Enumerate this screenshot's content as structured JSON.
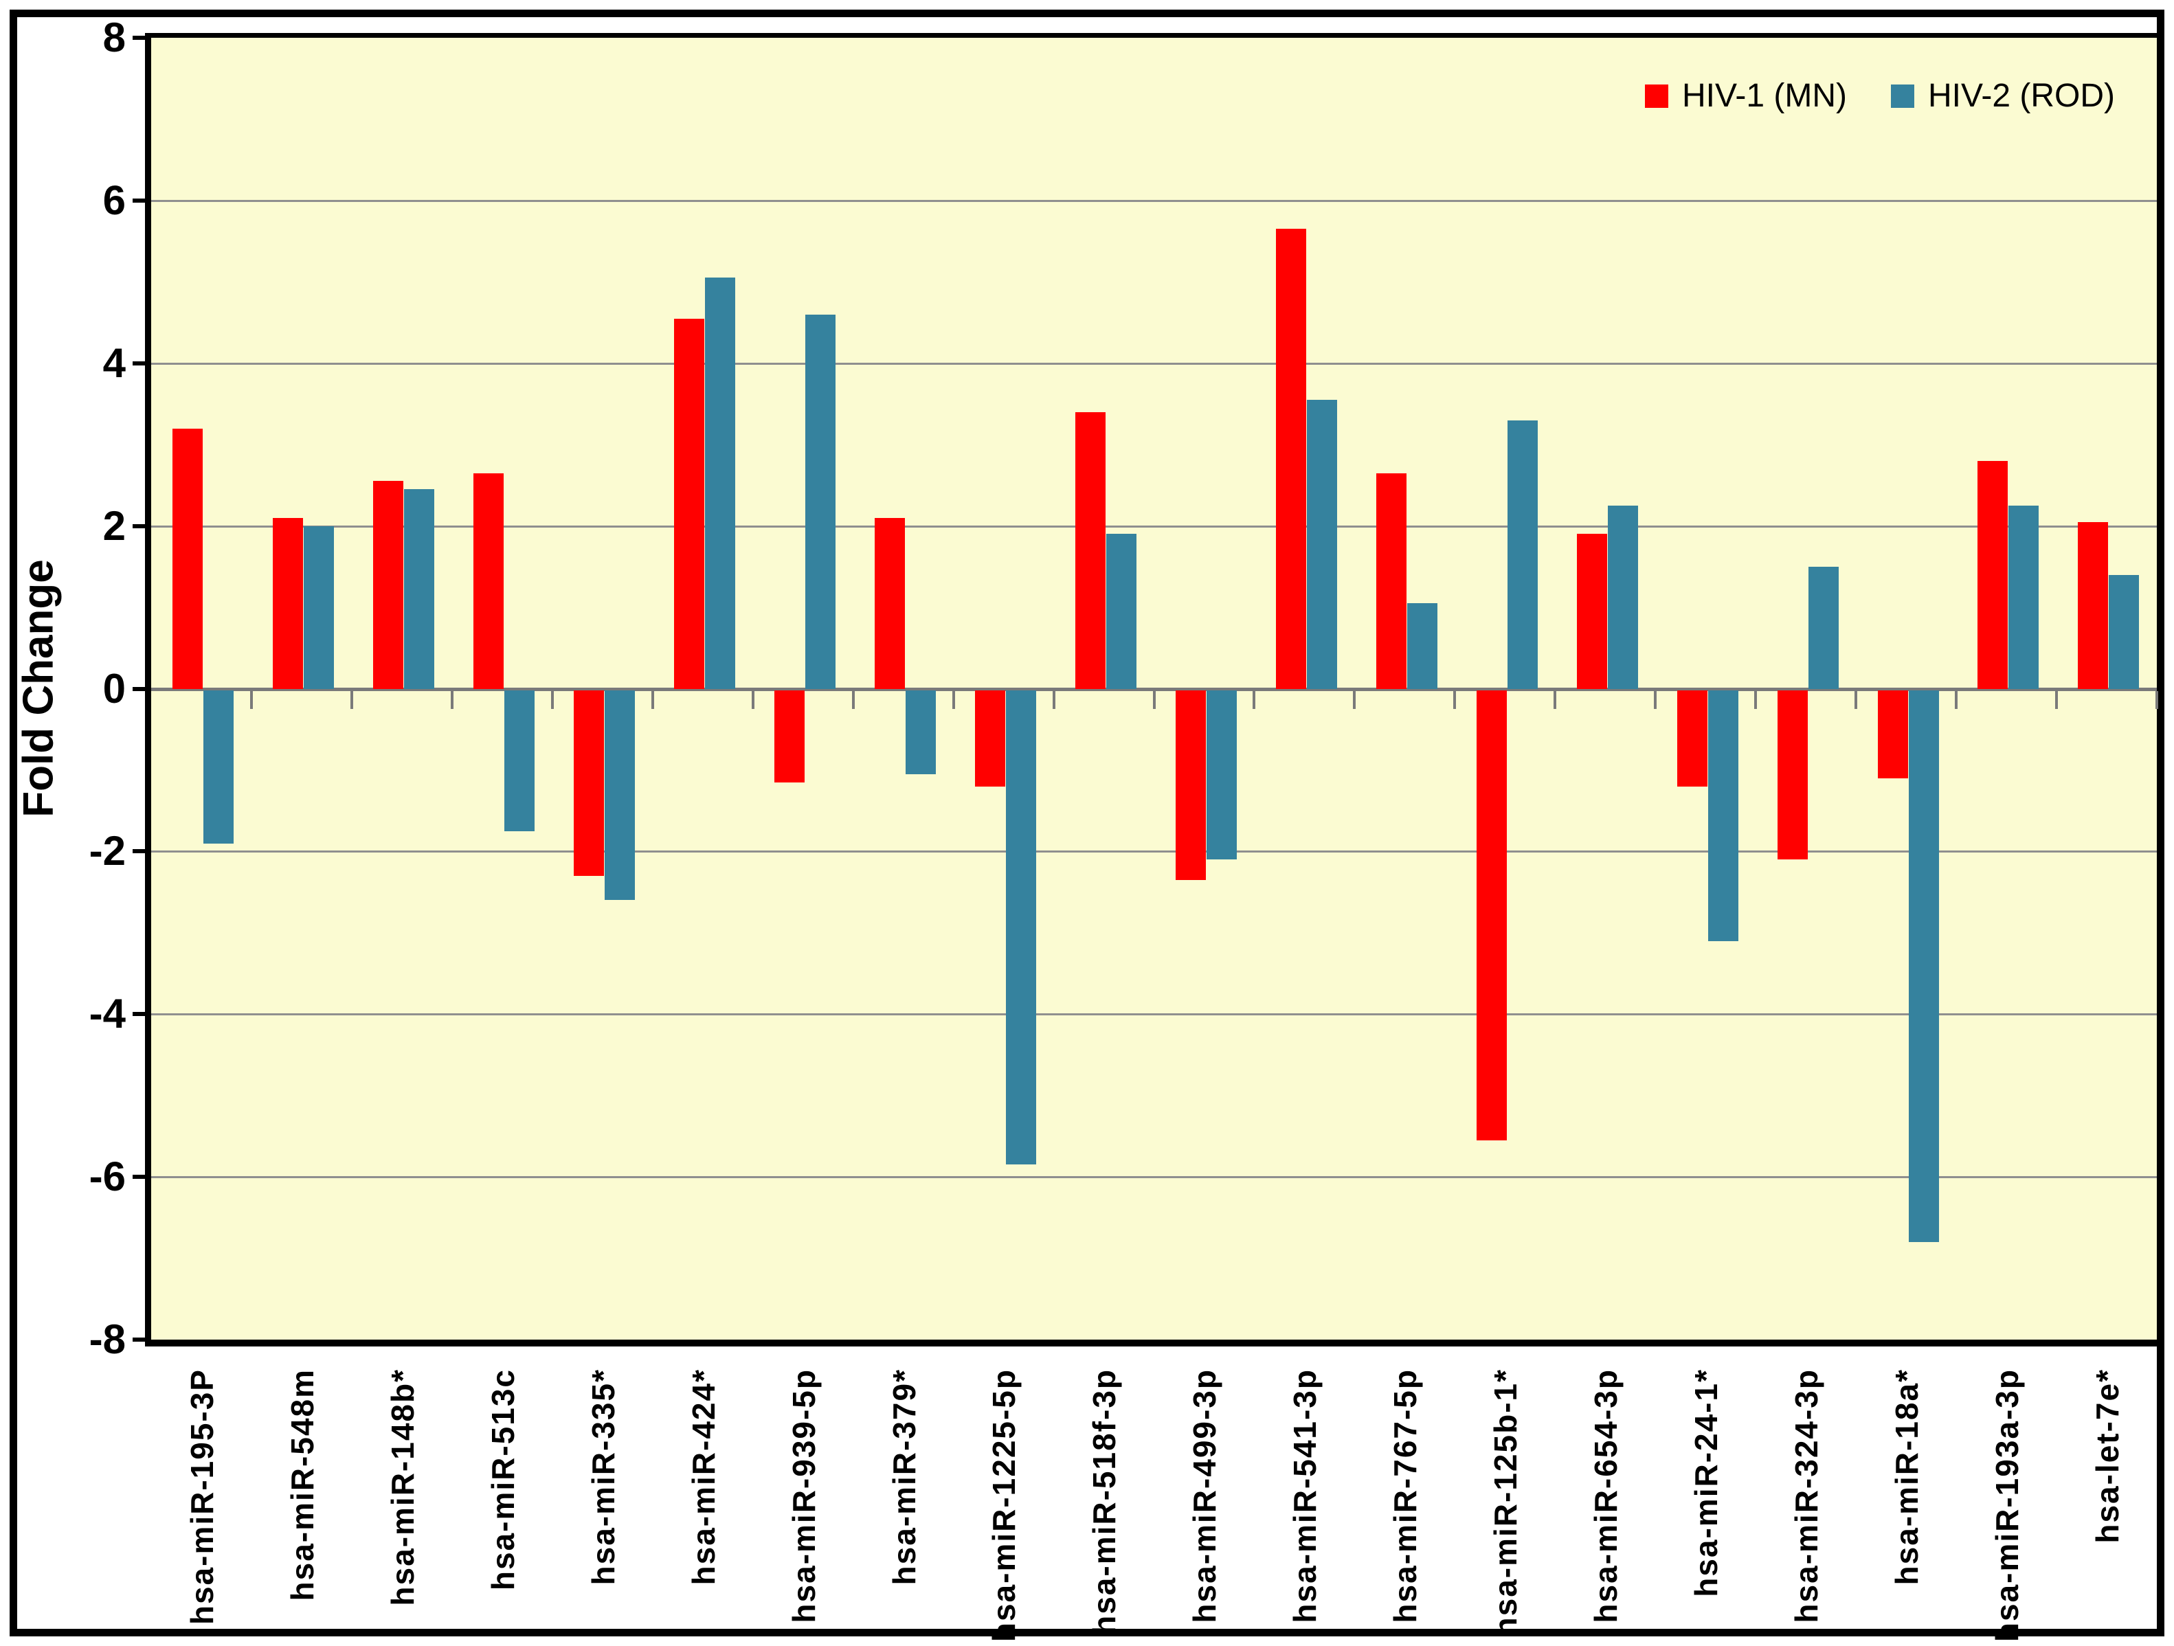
{
  "chart_data": {
    "type": "bar",
    "title": "",
    "xlabel": "",
    "ylabel": "Fold Change",
    "ylim": [
      -8,
      8
    ],
    "yticks": [
      8,
      6,
      4,
      2,
      0,
      -2,
      -4,
      -6,
      -8
    ],
    "grid": true,
    "legend_position": "top-right",
    "categories": [
      "hsa-miR-195-3P",
      "hsa-miR-548m",
      "hsa-miR-148b*",
      "hsa-miR-513c",
      "hsa-miR-335*",
      "hsa-miR-424*",
      "hsa-miR-939-5p",
      "hsa-miR-379*",
      "hsa-miR-1225-5p",
      "hsa-miR-518f-3p",
      "hsa-miR-499-3p",
      "hsa-miR-541-3p",
      "hsa-miR-767-5p",
      "hsa-miR-125b-1*",
      "hsa-miR-654-3p",
      "hsa-miR-24-1*",
      "hsa-miR-324-3p",
      "hsa-miR-18a*",
      "hsa-miR-193a-3p",
      "hsa-let-7e*"
    ],
    "series": [
      {
        "name": "HIV-1 (MN)",
        "color": "#FF0000",
        "values": [
          3.2,
          2.1,
          2.55,
          2.65,
          -2.3,
          4.55,
          -1.15,
          2.1,
          -1.2,
          3.4,
          -2.35,
          5.65,
          2.65,
          -5.55,
          1.9,
          -1.2,
          -2.1,
          -1.1,
          2.8,
          2.05
        ]
      },
      {
        "name": "HIV-2 (ROD)",
        "color": "#35829E",
        "values": [
          -1.9,
          2.0,
          2.45,
          -1.75,
          -2.6,
          5.05,
          4.6,
          -1.05,
          -5.85,
          1.9,
          -2.1,
          3.55,
          1.05,
          3.3,
          2.25,
          -3.1,
          1.5,
          -6.8,
          2.25,
          1.4
        ]
      }
    ]
  },
  "colors": {
    "plot_background": "#FBFBD2",
    "gridline": "#8F8F8F",
    "zero_line": "#7A7A7A",
    "x_tick": "#7A7A7A",
    "axis": "#000000",
    "figure_border": "#000000",
    "series_hiv1": "#FF0000",
    "series_hiv2": "#35829E"
  }
}
